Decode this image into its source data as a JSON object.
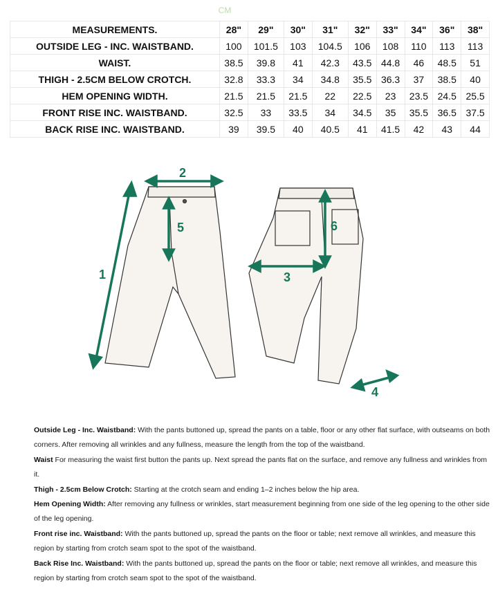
{
  "unit_label": "CM",
  "table": {
    "header": {
      "label": "MEASUREMENTS.",
      "sizes": [
        "28\"",
        "29\"",
        "30\"",
        "31\"",
        "32\"",
        "33\"",
        "34\"",
        "36\"",
        "38\""
      ]
    },
    "rows": [
      {
        "label": "OUTSIDE LEG - INC. WAISTBAND.",
        "values": [
          "100",
          "101.5",
          "103",
          "104.5",
          "106",
          "108",
          "110",
          "113",
          "113"
        ]
      },
      {
        "label": "WAIST.",
        "values": [
          "38.5",
          "39.8",
          "41",
          "42.3",
          "43.5",
          "44.8",
          "46",
          "48.5",
          "51"
        ]
      },
      {
        "label": "THIGH - 2.5CM BELOW CROTCH.",
        "values": [
          "32.8",
          "33.3",
          "34",
          "34.8",
          "35.5",
          "36.3",
          "37",
          "38.5",
          "40"
        ]
      },
      {
        "label": "HEM OPENING WIDTH.",
        "values": [
          "21.5",
          "21.5",
          "21.5",
          "22",
          "22.5",
          "23",
          "23.5",
          "24.5",
          "25.5"
        ]
      },
      {
        "label": "FRONT RISE INC. WAISTBAND.",
        "values": [
          "32.5",
          "33",
          "33.5",
          "34",
          "34.5",
          "35",
          "35.5",
          "36.5",
          "37.5"
        ]
      },
      {
        "label": "BACK RISE INC. WAISTBAND.",
        "values": [
          "39",
          "39.5",
          "40",
          "40.5",
          "41",
          "41.5",
          "42",
          "43",
          "44"
        ]
      }
    ]
  },
  "diagram": {
    "accent_color": "#17765a",
    "markers": [
      "1",
      "2",
      "3",
      "4",
      "5",
      "6"
    ]
  },
  "notes": [
    {
      "term": "Outside Leg - Inc. Waistband:",
      "text": " With the pants buttoned up, spread the pants on a table, floor or any other flat surface, with outseams on both corners. After removing all wrinkles and any fullness, measure the length from the top of the waistband."
    },
    {
      "term": "Waist",
      "text": " For measuring the waist first button the pants up. Next spread the pants flat on the surface, and remove any fullness and wrinkles from it."
    },
    {
      "term": "Thigh - 2.5cm Below Crotch:",
      "text": " Starting at the crotch seam and ending 1–2 inches below the hip area."
    },
    {
      "term": "Hem Opening Width:",
      "text": " After removing any fullness or wrinkles, start measurement beginning from one side of the leg opening to the other side of the leg opening."
    },
    {
      "term": "Front rise inc. Waistband:",
      "text": " With the pants buttoned up, spread the pants on the floor or table; next remove all wrinkles, and measure this region by starting from crotch seam spot to the spot of the waistband."
    },
    {
      "term": "Back Rise Inc. Waistband:",
      "text": " With the pants buttoned up, spread the pants on the floor or table; next remove all wrinkles, and measure this region by starting from crotch seam spot to the spot of the waistband."
    }
  ]
}
